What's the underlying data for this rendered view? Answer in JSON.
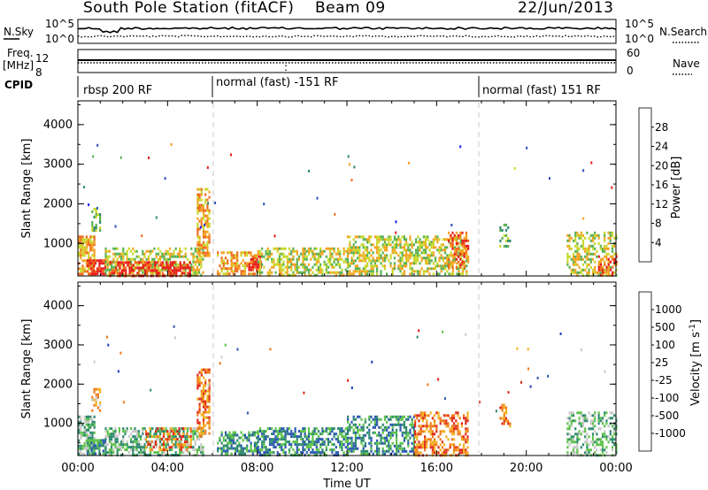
{
  "header": {
    "title": "South Pole Station (fitACF)",
    "beam": "Beam 09",
    "date": "22/Jun/2013"
  },
  "top_panels": {
    "nsky_label": "N.Sky",
    "nsky_ticks": [
      "10^5",
      "10^0"
    ],
    "nsearch_label": "N.Search",
    "nsearch_ticks": [
      "10^5",
      "10^0"
    ],
    "freq_label_1": "Freq.",
    "freq_label_2": "[MHz]",
    "freq_ticks": [
      "12",
      "8"
    ],
    "nave_label": "Nave",
    "nave_ticks": [
      "60",
      "0"
    ],
    "cpid_label": "CPID",
    "cpid_segments": [
      {
        "label": "rbsp 200 RF",
        "start_hour": 0
      },
      {
        "label": "normal (fast) -151 RF",
        "start_hour": 6
      },
      {
        "label": "normal (fast) 151 RF",
        "start_hour": 18
      }
    ]
  },
  "chart_data": [
    {
      "type": "heatmap",
      "panel": "power",
      "xlabel": "",
      "ylabel": "Slant Range [km]",
      "x_range_hours": [
        0,
        24
      ],
      "ylim": [
        180,
        4600
      ],
      "y_ticks": [
        "1000",
        "2000",
        "3000",
        "4000"
      ],
      "x_tick_hours": [
        0,
        4,
        8,
        12,
        16,
        20,
        24
      ],
      "colorbar": {
        "label": "Power [dB]",
        "ticks": [
          "4",
          "8",
          "12",
          "16",
          "20",
          "24",
          "28"
        ],
        "colors": [
          "#1c1cf0",
          "#2a4fb8",
          "#2e8a6e",
          "#58b14f",
          "#c8d828",
          "#f4a21e",
          "#f06a1a",
          "#e81c1c"
        ]
      },
      "scatter_patches": [
        {
          "t": [
            0.0,
            0.7
          ],
          "r": [
            200,
            1200
          ],
          "level": 5,
          "density": 0.75
        },
        {
          "t": [
            0.4,
            1.2
          ],
          "r": [
            200,
            600
          ],
          "level": 7,
          "density": 0.85
        },
        {
          "t": [
            0.6,
            1.0
          ],
          "r": [
            1350,
            1900
          ],
          "level": 3,
          "density": 0.5
        },
        {
          "t": [
            1.2,
            5.6
          ],
          "r": [
            200,
            900
          ],
          "level": 4,
          "density": 0.55
        },
        {
          "t": [
            1.4,
            5.0
          ],
          "r": [
            200,
            550
          ],
          "level": 7,
          "density": 0.6
        },
        {
          "t": [
            5.3,
            5.9
          ],
          "r": [
            700,
            2400
          ],
          "level": 5,
          "density": 0.6
        },
        {
          "t": [
            6.2,
            8.0
          ],
          "r": [
            200,
            800
          ],
          "level": 5,
          "density": 0.6
        },
        {
          "t": [
            7.6,
            8.2
          ],
          "r": [
            300,
            700
          ],
          "level": 7,
          "density": 0.7
        },
        {
          "t": [
            8.0,
            12.0
          ],
          "r": [
            200,
            900
          ],
          "level": 4,
          "density": 0.55
        },
        {
          "t": [
            12.0,
            17.3
          ],
          "r": [
            200,
            1200
          ],
          "level": 4,
          "density": 0.55
        },
        {
          "t": [
            16.5,
            17.4
          ],
          "r": [
            400,
            1300
          ],
          "level": 6,
          "density": 0.5
        },
        {
          "t": [
            18.8,
            19.3
          ],
          "r": [
            900,
            1500
          ],
          "level": 3,
          "density": 0.4
        },
        {
          "t": [
            21.8,
            24.0
          ],
          "r": [
            200,
            1300
          ],
          "level": 4,
          "density": 0.45
        },
        {
          "t": [
            23.2,
            24.0
          ],
          "r": [
            200,
            700
          ],
          "level": 6,
          "density": 0.5
        }
      ]
    },
    {
      "type": "heatmap",
      "panel": "velocity",
      "xlabel": "Time UT",
      "ylabel": "Slant Range [km]",
      "x_range_hours": [
        0,
        24
      ],
      "ylim": [
        180,
        4600
      ],
      "y_ticks": [
        "1000",
        "2000",
        "3000",
        "4000"
      ],
      "x_tick_labels": [
        "00:00",
        "04:00",
        "08:00",
        "12:00",
        "16:00",
        "20:00",
        "00:00"
      ],
      "x_tick_hours": [
        0,
        4,
        8,
        12,
        16,
        20,
        24
      ],
      "colorbar": {
        "label": "Velocity [m s-1]",
        "ticks": [
          "1000",
          "500",
          "100",
          "25",
          "-25",
          "-100",
          "-500",
          "-1000"
        ],
        "colors": [
          "#1d3bbf",
          "#2a58b0",
          "#2e8a6e",
          "#5cc24a",
          "#c8c8c8",
          "#f4b01e",
          "#f07a1a",
          "#e02a1a",
          "#e81c1c"
        ]
      },
      "scatter_patches": [
        {
          "t": [
            0.0,
            0.7
          ],
          "r": [
            200,
            1200
          ],
          "level": 3,
          "density": 0.7
        },
        {
          "t": [
            0.4,
            1.2
          ],
          "r": [
            200,
            600
          ],
          "level": 2,
          "density": 0.8
        },
        {
          "t": [
            0.6,
            1.0
          ],
          "r": [
            1350,
            1900
          ],
          "level": 5,
          "density": 0.5
        },
        {
          "t": [
            1.2,
            5.6
          ],
          "r": [
            200,
            900
          ],
          "level": 3,
          "density": 0.55
        },
        {
          "t": [
            3.0,
            5.0
          ],
          "r": [
            300,
            900
          ],
          "level": 6,
          "density": 0.45
        },
        {
          "t": [
            5.3,
            5.9
          ],
          "r": [
            700,
            2400
          ],
          "level": 6,
          "density": 0.6
        },
        {
          "t": [
            6.2,
            8.0
          ],
          "r": [
            200,
            800
          ],
          "level": 2,
          "density": 0.6
        },
        {
          "t": [
            8.0,
            12.0
          ],
          "r": [
            200,
            900
          ],
          "level": 2,
          "density": 0.6
        },
        {
          "t": [
            12.0,
            15.0
          ],
          "r": [
            200,
            1200
          ],
          "level": 2,
          "density": 0.55
        },
        {
          "t": [
            15.0,
            17.4
          ],
          "r": [
            200,
            1300
          ],
          "level": 6,
          "density": 0.5
        },
        {
          "t": [
            18.8,
            19.3
          ],
          "r": [
            900,
            1500
          ],
          "level": 6,
          "density": 0.4
        },
        {
          "t": [
            21.8,
            24.0
          ],
          "r": [
            200,
            1300
          ],
          "level": 3,
          "density": 0.45
        }
      ]
    }
  ]
}
